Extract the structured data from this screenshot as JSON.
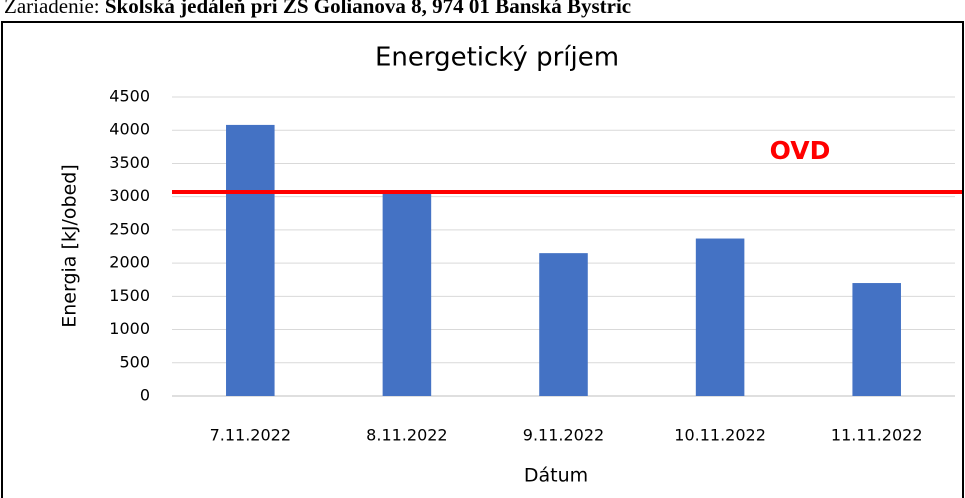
{
  "header": {
    "label": "Zariadenie:",
    "value": "Školská jedáleň pri ZŠ Golianova 8, 974 01 Banská Bystric"
  },
  "chart_data": {
    "type": "bar",
    "title": "Energetický príjem",
    "x_label": "Dátum",
    "y_label": "Energia [kJ/obed]",
    "categories": [
      "7.11.2022",
      "8.11.2022",
      "9.11.2022",
      "10.11.2022",
      "11.11.2022"
    ],
    "values": [
      4080,
      3060,
      2150,
      2370,
      1700
    ],
    "color": "#4472c4",
    "ylim": [
      0,
      4500
    ],
    "yticks": [
      0,
      500,
      1000,
      1500,
      2000,
      2500,
      3000,
      3500,
      4000,
      4500
    ],
    "grid": true,
    "reference_line": {
      "label": "OVD",
      "value": 3070,
      "color": "#ff0000"
    }
  }
}
